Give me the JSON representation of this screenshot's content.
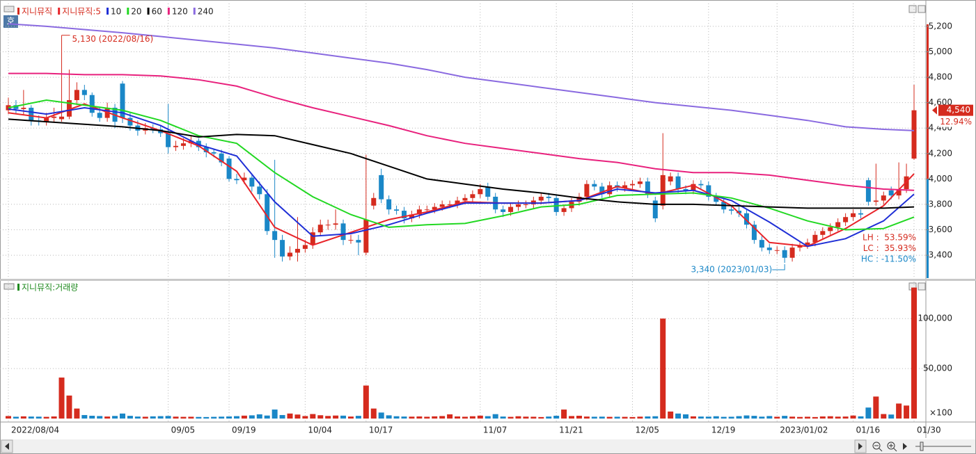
{
  "badge": "호",
  "chart_data": [
    {
      "type": "candlestick",
      "name": "지니뮤직",
      "up_color": "#d52b1e",
      "down_color": "#1a87c7",
      "categories": [
        "2022/08/04",
        null,
        null,
        null,
        null,
        null,
        null,
        null,
        null,
        null,
        null,
        null,
        null,
        null,
        null,
        null,
        null,
        null,
        null,
        null,
        null,
        "09/05",
        null,
        null,
        null,
        null,
        null,
        null,
        null,
        "09/19",
        null,
        null,
        null,
        null,
        null,
        null,
        null,
        null,
        null,
        "10/04",
        null,
        null,
        null,
        null,
        null,
        null,
        null,
        "10/17",
        null,
        null,
        null,
        null,
        null,
        null,
        null,
        null,
        null,
        null,
        null,
        null,
        null,
        null,
        "11/07",
        null,
        null,
        null,
        null,
        null,
        null,
        null,
        null,
        null,
        "11/21",
        null,
        null,
        null,
        null,
        null,
        null,
        null,
        null,
        null,
        "12/05",
        null,
        null,
        null,
        null,
        null,
        null,
        null,
        null,
        null,
        "12/19",
        null,
        null,
        null,
        null,
        null,
        null,
        null,
        null,
        "2023/01/02",
        null,
        null,
        null,
        null,
        null,
        null,
        null,
        null,
        null,
        "01/16",
        null,
        null,
        null,
        null,
        null,
        null,
        null,
        "01/30"
      ],
      "open": [
        4540,
        4580,
        4550,
        4560,
        4460,
        4450,
        4480,
        4470,
        4490,
        4620,
        4700,
        4660,
        4520,
        4480,
        4560,
        4750,
        4480,
        4420,
        4380,
        4400,
        4390,
        4360,
        4250,
        4260,
        4280,
        4300,
        4250,
        4210,
        4200,
        4160,
        4000,
        3990,
        4010,
        3940,
        3880,
        3590,
        3520,
        3390,
        3420,
        3450,
        3480,
        3580,
        3640,
        3640,
        3650,
        3520,
        3520,
        3420,
        3790,
        4030,
        3840,
        3760,
        3750,
        3690,
        3720,
        3760,
        3760,
        3780,
        3800,
        3800,
        3830,
        3850,
        3880,
        3940,
        3860,
        3760,
        3740,
        3780,
        3800,
        3800,
        3830,
        3860,
        3850,
        3740,
        3770,
        3820,
        3860,
        3960,
        3940,
        3880,
        3950,
        3930,
        3950,
        3960,
        3980,
        3830,
        3790,
        3980,
        4020,
        3920,
        3910,
        3960,
        3950,
        3860,
        3820,
        3760,
        3750,
        3730,
        3640,
        3520,
        3460,
        3440,
        3440,
        3380,
        3460,
        3480,
        3500,
        3560,
        3590,
        3620,
        3660,
        3700,
        3730,
        3990,
        3820,
        3830,
        3910,
        3870,
        3920,
        4160
      ],
      "high": [
        4640,
        4620,
        4700,
        4580,
        4500,
        4520,
        4560,
        5130,
        4860,
        4760,
        4740,
        4680,
        4560,
        4600,
        4590,
        4770,
        4520,
        4460,
        4440,
        4430,
        4420,
        4590,
        4300,
        4320,
        4340,
        4320,
        4280,
        4240,
        4230,
        4180,
        4040,
        4050,
        4040,
        3980,
        3920,
        4150,
        3560,
        3470,
        3700,
        3520,
        3620,
        3680,
        3680,
        3760,
        3680,
        3560,
        3560,
        4190,
        3890,
        4080,
        3870,
        3790,
        3780,
        3750,
        3790,
        3790,
        3810,
        3830,
        3830,
        3860,
        3880,
        3910,
        3960,
        3970,
        3890,
        3790,
        3810,
        3830,
        3830,
        3860,
        3890,
        3890,
        3880,
        3800,
        3850,
        3890,
        3990,
        3990,
        3970,
        3980,
        3980,
        3980,
        3990,
        4010,
        4010,
        3860,
        4360,
        4050,
        4050,
        3950,
        3990,
        3990,
        3980,
        3890,
        3850,
        3790,
        3780,
        3760,
        3670,
        3550,
        3490,
        3470,
        3470,
        3490,
        3510,
        3530,
        3590,
        3620,
        3650,
        3690,
        3730,
        3760,
        3760,
        4010,
        4120,
        3900,
        3940,
        4130,
        4120,
        4740
      ],
      "low": [
        4510,
        4510,
        4500,
        4420,
        4420,
        4420,
        4450,
        4450,
        4470,
        4580,
        4620,
        4490,
        4450,
        4450,
        4400,
        4440,
        4380,
        4340,
        4350,
        4360,
        4330,
        4200,
        4220,
        4230,
        4250,
        4220,
        4170,
        4170,
        4100,
        3980,
        3960,
        3960,
        3900,
        3840,
        3560,
        3380,
        3350,
        3360,
        3350,
        3420,
        3450,
        3550,
        3600,
        3600,
        3480,
        3490,
        3400,
        3400,
        3760,
        3810,
        3720,
        3720,
        3650,
        3660,
        3690,
        3730,
        3730,
        3750,
        3770,
        3770,
        3800,
        3820,
        3850,
        3830,
        3730,
        3700,
        3710,
        3750,
        3770,
        3770,
        3800,
        3820,
        3710,
        3710,
        3740,
        3790,
        3830,
        3910,
        3850,
        3850,
        3900,
        3900,
        3920,
        3930,
        3850,
        3660,
        3760,
        3950,
        3890,
        3880,
        3880,
        3920,
        3830,
        3790,
        3730,
        3720,
        3700,
        3610,
        3490,
        3430,
        3410,
        3410,
        3340,
        3350,
        3430,
        3450,
        3470,
        3530,
        3560,
        3590,
        3630,
        3670,
        3690,
        3790,
        3790,
        3800,
        3840,
        3840,
        3890,
        4150
      ],
      "close": [
        4580,
        4550,
        4560,
        4460,
        4450,
        4480,
        4490,
        4490,
        4620,
        4700,
        4660,
        4520,
        4480,
        4560,
        4450,
        4480,
        4420,
        4380,
        4400,
        4390,
        4360,
        4250,
        4260,
        4280,
        4300,
        4250,
        4210,
        4200,
        4130,
        4000,
        3990,
        4010,
        3940,
        3880,
        3590,
        3520,
        3390,
        3420,
        3450,
        3480,
        3580,
        3640,
        3640,
        3650,
        3520,
        3520,
        3500,
        3680,
        3850,
        3840,
        3760,
        3750,
        3690,
        3720,
        3760,
        3760,
        3780,
        3800,
        3800,
        3830,
        3850,
        3880,
        3920,
        3860,
        3760,
        3740,
        3780,
        3800,
        3800,
        3830,
        3860,
        3850,
        3740,
        3770,
        3820,
        3860,
        3960,
        3940,
        3880,
        3950,
        3930,
        3950,
        3960,
        3980,
        3880,
        3690,
        4030,
        4020,
        3920,
        3910,
        3960,
        3950,
        3860,
        3820,
        3760,
        3750,
        3730,
        3640,
        3520,
        3460,
        3440,
        3440,
        3380,
        3460,
        3480,
        3500,
        3560,
        3590,
        3620,
        3660,
        3700,
        3730,
        3720,
        3820,
        3830,
        3870,
        3870,
        3920,
        4020,
        4540
      ],
      "ma_series": [
        {
          "name": "지니뮤직:5",
          "color": "#e8242a",
          "x": [
            0,
            5,
            10,
            15,
            20,
            25,
            30,
            35,
            40,
            45,
            50,
            55,
            60,
            65,
            70,
            75,
            80,
            85,
            90,
            95,
            100,
            105,
            110,
            115,
            119
          ],
          "values": [
            4520,
            4480,
            4590,
            4480,
            4380,
            4260,
            4060,
            3620,
            3480,
            3580,
            3680,
            3740,
            3820,
            3810,
            3810,
            3830,
            3940,
            3880,
            3950,
            3790,
            3500,
            3470,
            3610,
            3790,
            4040
          ]
        },
        {
          "name": "10",
          "color": "#1f2fd6",
          "x": [
            0,
            5,
            10,
            15,
            20,
            25,
            30,
            35,
            40,
            45,
            50,
            55,
            60,
            65,
            70,
            75,
            80,
            85,
            90,
            95,
            100,
            105,
            110,
            115,
            119
          ],
          "values": [
            4550,
            4510,
            4560,
            4520,
            4420,
            4270,
            4180,
            3820,
            3550,
            3570,
            3640,
            3730,
            3810,
            3810,
            3810,
            3830,
            3920,
            3890,
            3910,
            3830,
            3660,
            3470,
            3530,
            3670,
            3880
          ]
        },
        {
          "name": "20",
          "color": "#22d822",
          "x": [
            0,
            5,
            10,
            15,
            20,
            25,
            30,
            35,
            40,
            45,
            50,
            55,
            60,
            65,
            70,
            75,
            80,
            85,
            90,
            95,
            100,
            105,
            110,
            115,
            119
          ],
          "values": [
            4560,
            4620,
            4580,
            4540,
            4460,
            4340,
            4280,
            4050,
            3860,
            3720,
            3620,
            3640,
            3650,
            3710,
            3780,
            3800,
            3870,
            3880,
            3890,
            3850,
            3770,
            3670,
            3600,
            3610,
            3700
          ]
        },
        {
          "name": "60",
          "color": "#000000",
          "x": [
            0,
            5,
            10,
            15,
            20,
            25,
            30,
            35,
            40,
            45,
            50,
            55,
            60,
            65,
            70,
            75,
            80,
            85,
            90,
            95,
            100,
            105,
            110,
            115,
            119
          ],
          "values": [
            4470,
            4450,
            4430,
            4410,
            4380,
            4330,
            4350,
            4340,
            4270,
            4200,
            4100,
            4000,
            3960,
            3920,
            3890,
            3850,
            3820,
            3800,
            3800,
            3790,
            3780,
            3770,
            3770,
            3770,
            3780
          ]
        },
        {
          "name": "120",
          "color": "#e8217d",
          "x": [
            0,
            5,
            10,
            15,
            20,
            25,
            30,
            35,
            40,
            45,
            50,
            55,
            60,
            65,
            70,
            75,
            80,
            85,
            90,
            95,
            100,
            105,
            110,
            115,
            119
          ],
          "values": [
            4830,
            4830,
            4820,
            4820,
            4810,
            4780,
            4730,
            4640,
            4560,
            4490,
            4420,
            4340,
            4280,
            4240,
            4200,
            4160,
            4130,
            4080,
            4050,
            4050,
            4030,
            3990,
            3950,
            3920,
            3910
          ]
        },
        {
          "name": "240",
          "color": "#8a6ae0",
          "x": [
            0,
            5,
            10,
            15,
            20,
            25,
            30,
            35,
            40,
            45,
            50,
            55,
            60,
            65,
            70,
            75,
            80,
            85,
            90,
            95,
            100,
            105,
            110,
            115,
            119
          ],
          "values": [
            5220,
            5200,
            5175,
            5150,
            5120,
            5090,
            5060,
            5030,
            4990,
            4950,
            4910,
            4860,
            4800,
            4760,
            4720,
            4680,
            4640,
            4600,
            4570,
            4540,
            4500,
            4460,
            4410,
            4390,
            4380
          ]
        }
      ],
      "ylim": [
        3220,
        5380
      ],
      "yticks": [
        {
          "value": 5200,
          "label": "5,200"
        },
        {
          "value": 5000,
          "label": "5,000"
        },
        {
          "value": 4800,
          "label": "4,800"
        },
        {
          "value": 4600,
          "label": "4,600"
        },
        {
          "value": 4400,
          "label": "4,400"
        },
        {
          "value": 4200,
          "label": "4,200"
        },
        {
          "value": 4000,
          "label": "4,000"
        },
        {
          "value": 3800,
          "label": "3,800"
        },
        {
          "value": 3600,
          "label": "3,600"
        },
        {
          "value": 3400,
          "label": "3,400"
        }
      ],
      "grid": true,
      "annotations": {
        "max_label": "5,130 (2022/08/16)",
        "min_label": "3,340 (2023/01/03)",
        "last_label": "4,540",
        "change_label": "12.94%",
        "stats": [
          "LH :  53.59%",
          "LC :  35.93%",
          "HC : -11.50%"
        ]
      }
    },
    {
      "type": "bar",
      "name": "지니뮤직:거래량",
      "color": "#1e8a1e",
      "values": [
        2500,
        1800,
        2200,
        2000,
        1900,
        1700,
        2100,
        41000,
        23000,
        10000,
        3500,
        2800,
        2500,
        2000,
        2600,
        5000,
        2700,
        2000,
        1800,
        2200,
        2400,
        2600,
        1900,
        1700,
        1800,
        1600,
        1500,
        1700,
        1900,
        2100,
        2400,
        2900,
        3200,
        4200,
        3000,
        9000,
        3500,
        5000,
        4000,
        2500,
        4500,
        3300,
        2600,
        3000,
        2900,
        2000,
        2700,
        33000,
        10000,
        6000,
        3200,
        2300,
        2000,
        1900,
        2100,
        1800,
        2200,
        2500,
        4200,
        2100,
        1800,
        2300,
        2900,
        2400,
        4400,
        2000,
        1700,
        2300,
        1900,
        1800,
        1500,
        2000,
        2800,
        9000,
        2500,
        2800,
        2000,
        1800,
        1900,
        1700,
        1800,
        1700,
        1500,
        1900,
        2100,
        2300,
        100000,
        7000,
        5000,
        4200,
        2200,
        2000,
        1900,
        2300,
        1700,
        1800,
        2400,
        3100,
        2700,
        1900,
        2500,
        1800,
        2700,
        1900,
        1600,
        1800,
        1500,
        2100,
        2300,
        1900,
        2000,
        3000,
        2200,
        11000,
        22000,
        4500,
        4000,
        15000,
        13000,
        131000
      ],
      "ylim": [
        0,
        137000
      ],
      "yticks": [
        {
          "value": 100000,
          "label": "100,000"
        },
        {
          "value": 50000,
          "label": "50,000"
        }
      ],
      "unit_label": "×100",
      "grid": true
    }
  ]
}
